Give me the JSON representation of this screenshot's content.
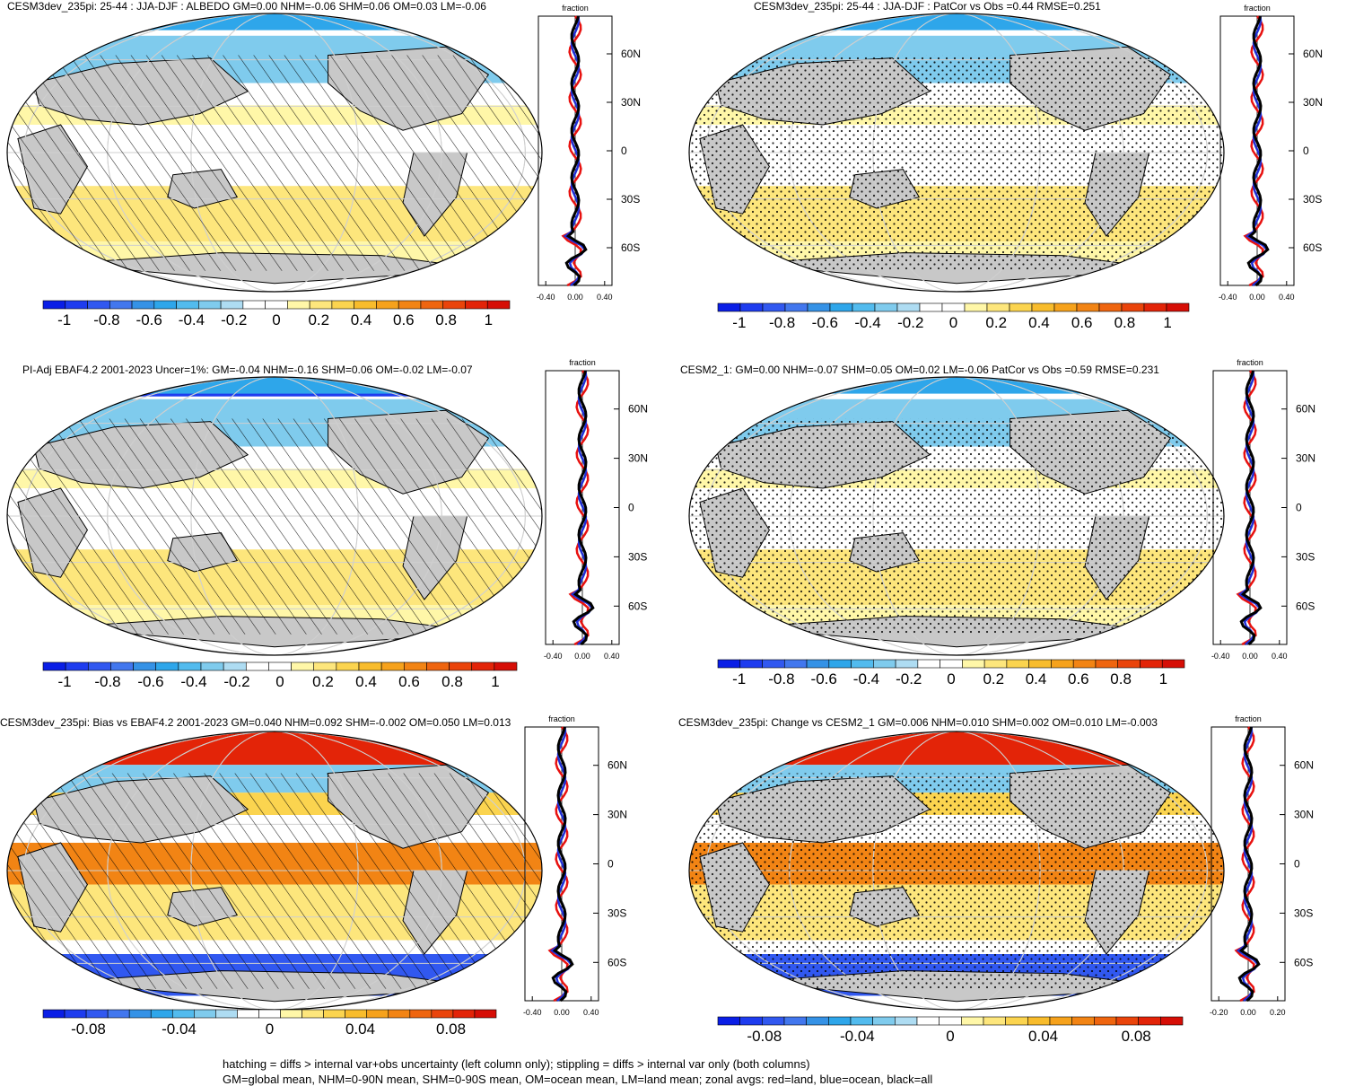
{
  "panels": [
    {
      "title": "CESM3dev_235pi: 25-44 : JJA-DJF : ALBEDO GM=0.00 NHM=-0.06 SHM=0.06 OM=0.03 LM=-0.06",
      "overlay": "hatch",
      "colorbar": "albedo",
      "profile_xticks": [
        "-0.40",
        "0.00",
        "0.40"
      ]
    },
    {
      "title": "CESM3dev_235pi: 25-44 : JJA-DJF : PatCor vs Obs =0.44 RMSE=0.251",
      "overlay": "stipple",
      "colorbar": "albedo",
      "profile_xticks": [
        "-0.40",
        "0.00",
        "0.40"
      ]
    },
    {
      "title": "PI-Adj EBAF4.2 2001-2023 Uncer=1%: GM=-0.04 NHM=-0.16 SHM=0.06 OM=-0.02 LM=-0.07",
      "overlay": "hatch",
      "colorbar": "albedo",
      "profile_xticks": [
        "-0.40",
        "0.00",
        "0.40"
      ]
    },
    {
      "title": "CESM2_1: GM=0.00 NHM=-0.07 SHM=0.05 OM=0.02 LM=-0.06 PatCor vs Obs =0.59 RMSE=0.231",
      "overlay": "stipple",
      "colorbar": "albedo",
      "profile_xticks": [
        "-0.40",
        "0.00",
        "0.40"
      ]
    },
    {
      "title": "CESM3dev_235pi: Bias vs EBAF4.2 2001-2023 GM=0.040 NHM=0.092 SHM=-0.002 OM=0.050 LM=0.013",
      "overlay": "hatch",
      "colorbar": "bias",
      "profile_xticks": [
        "-0.40",
        "0.00",
        "0.40"
      ]
    },
    {
      "title": "CESM3dev_235pi: Change vs CESM2_1 GM=0.006 NHM=0.010 SHM=0.002 OM=0.010 LM=-0.003",
      "overlay": "stipple",
      "colorbar": "bias",
      "profile_xticks": [
        "-0.20",
        "0.00",
        "0.20"
      ]
    }
  ],
  "profile": {
    "xlabel": "fraction",
    "lat_ticks": [
      "60N",
      "30N",
      "0",
      "30S",
      "60S"
    ],
    "series": [
      {
        "name": "land",
        "color": "#e8110f"
      },
      {
        "name": "ocean",
        "color": "#1f2fd6"
      },
      {
        "name": "all",
        "color": "#000000"
      }
    ]
  },
  "colorbars": {
    "albedo": {
      "labels": [
        "-1",
        "-0.8",
        "-0.6",
        "-0.4",
        "-0.2",
        "0",
        "0.2",
        "0.4",
        "0.6",
        "0.8",
        "1"
      ],
      "colors": [
        "#0a1ee6",
        "#1e3cef",
        "#3158f0",
        "#4277ee",
        "#3592e6",
        "#2ea6ea",
        "#52bbee",
        "#7fcbed",
        "#aedcf2",
        "#ffffff",
        "#ffffff",
        "#fff7a8",
        "#fde67c",
        "#fbd44f",
        "#f8bc2c",
        "#f6a21c",
        "#f28414",
        "#ef650f",
        "#ea440b",
        "#e32408",
        "#d60e06"
      ]
    },
    "bias": {
      "labels": [
        "-0.08",
        "-0.04",
        "0",
        "0.04",
        "0.08"
      ],
      "colors": [
        "#0a1ee6",
        "#1e3cef",
        "#3158f0",
        "#4277ee",
        "#3592e6",
        "#2ea6ea",
        "#52bbee",
        "#7fcbed",
        "#aedcf2",
        "#ffffff",
        "#ffffff",
        "#fff7a8",
        "#fde67c",
        "#fbd44f",
        "#f8bc2c",
        "#f6a21c",
        "#f28414",
        "#ef650f",
        "#ea440b",
        "#e32408",
        "#d60e06"
      ]
    }
  },
  "footer": {
    "line1": "hatching = diffs > internal var+obs uncertainty (left column only); stippling = diffs > internal var only (both columns)",
    "line2": "GM=global mean, NHM=0-90N mean, SHM=0-90S mean, OM=ocean mean, LM=land mean; zonal avgs: red=land, blue=ocean, black=all"
  },
  "chart_data": [
    {
      "type": "heatmap",
      "title": "CESM3dev_235pi: 25-44 : JJA-DJF : ALBEDO GM=0.00 NHM=-0.06 SHM=0.06 OM=0.03 LM=-0.06",
      "colorbar_range": [
        -1,
        1
      ],
      "global_means": {
        "GM": 0.0,
        "NHM": -0.06,
        "SHM": 0.06,
        "OM": 0.03,
        "LM": -0.06
      }
    },
    {
      "type": "heatmap",
      "title": "CESM3dev_235pi: 25-44 : JJA-DJF : PatCor vs Obs =0.44 RMSE=0.251",
      "colorbar_range": [
        -1,
        1
      ],
      "stats": {
        "PatCor": 0.44,
        "RMSE": 0.251
      }
    },
    {
      "type": "heatmap",
      "title": "PI-Adj EBAF4.2 2001-2023 Uncer=1%: GM=-0.04 NHM=-0.16 SHM=0.06 OM=-0.02 LM=-0.07",
      "colorbar_range": [
        -1,
        1
      ],
      "global_means": {
        "GM": -0.04,
        "NHM": -0.16,
        "SHM": 0.06,
        "OM": -0.02,
        "LM": -0.07
      }
    },
    {
      "type": "heatmap",
      "title": "CESM2_1: GM=0.00 NHM=-0.07 SHM=0.05 OM=0.02 LM=-0.06 PatCor vs Obs =0.59 RMSE=0.231",
      "colorbar_range": [
        -1,
        1
      ],
      "global_means": {
        "GM": 0.0,
        "NHM": -0.07,
        "SHM": 0.05,
        "OM": 0.02,
        "LM": -0.06
      },
      "stats": {
        "PatCor": 0.59,
        "RMSE": 0.231
      }
    },
    {
      "type": "heatmap",
      "title": "CESM3dev_235pi: Bias vs EBAF4.2 2001-2023 GM=0.040 NHM=0.092 SHM=-0.002 OM=0.050 LM=0.013",
      "colorbar_range": [
        -0.1,
        0.1
      ],
      "global_means": {
        "GM": 0.04,
        "NHM": 0.092,
        "SHM": -0.002,
        "OM": 0.05,
        "LM": 0.013
      }
    },
    {
      "type": "heatmap",
      "title": "CESM3dev_235pi: Change vs CESM2_1 GM=0.006 NHM=0.010 SHM=0.002 OM=0.010 LM=-0.003",
      "colorbar_range": [
        -0.1,
        0.1
      ],
      "global_means": {
        "GM": 0.006,
        "NHM": 0.01,
        "SHM": 0.002,
        "OM": 0.01,
        "LM": -0.003
      }
    }
  ]
}
